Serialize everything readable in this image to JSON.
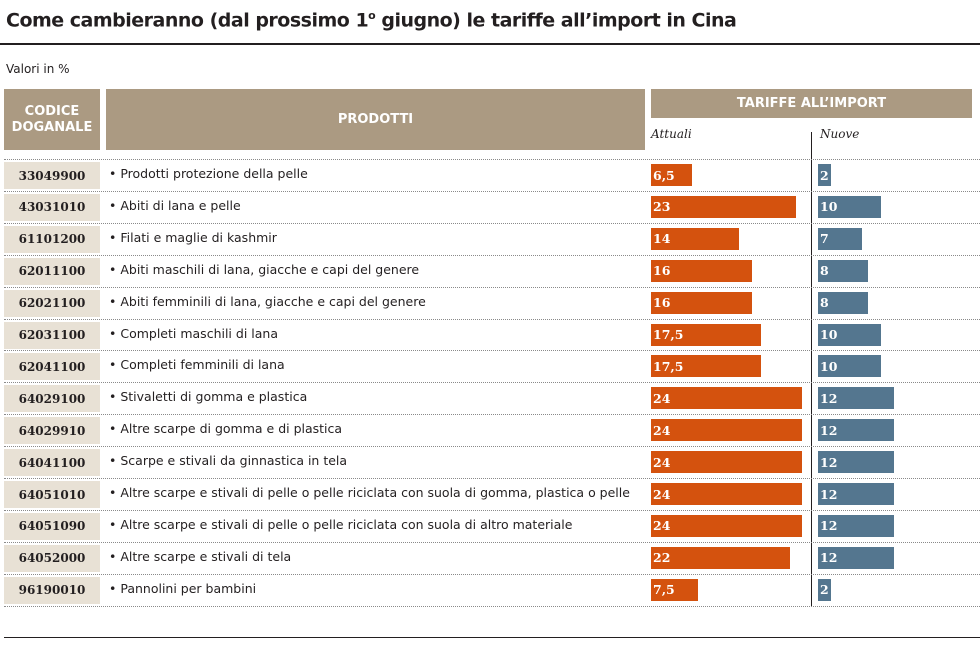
{
  "title_main": "Come cambieranno (dal prossimo 1",
  "title_sup": "o",
  "title_rest": " giugno) le tariffe all’import in Cina",
  "subtitle": "Valori in %",
  "headers": {
    "code_line1": "CODICE",
    "code_line2": "DOGANALE",
    "products": "PRODOTTI",
    "tariffs": "TARIFFE ALL’IMPORT",
    "current": "Attuali",
    "new": "Nuove"
  },
  "colors": {
    "current": "#d4520e",
    "new": "#54768f",
    "header": "#ab9a82",
    "code_bg": "#e8e1d5"
  },
  "chart_data": {
    "type": "bar",
    "title": "Come cambieranno (dal prossimo 1o giugno) le tariffe all’import in Cina",
    "subtitle": "Valori in %",
    "series": [
      {
        "name": "Attuali",
        "values": [
          6.5,
          23,
          14,
          16,
          16,
          17.5,
          17.5,
          24,
          24,
          24,
          24,
          24,
          22,
          7.5
        ]
      },
      {
        "name": "Nuove",
        "values": [
          2,
          10,
          7,
          8,
          8,
          10,
          10,
          12,
          12,
          12,
          12,
          12,
          12,
          2
        ]
      }
    ],
    "rows": [
      {
        "code": "33049900",
        "product": "• Prodotti protezione della pelle",
        "current_label": "6,5",
        "new_label": "2"
      },
      {
        "code": "43031010",
        "product": "• Abiti di lana e pelle",
        "current_label": "23",
        "new_label": "10"
      },
      {
        "code": "61101200",
        "product": "• Filati e maglie di kashmir",
        "current_label": "14",
        "new_label": "7"
      },
      {
        "code": "62011100",
        "product": "• Abiti maschili di lana, giacche e capi del genere",
        "current_label": "16",
        "new_label": "8"
      },
      {
        "code": "62021100",
        "product": "• Abiti femminili di lana, giacche e capi del genere",
        "current_label": "16",
        "new_label": "8"
      },
      {
        "code": "62031100",
        "product": "• Completi maschili di lana",
        "current_label": "17,5",
        "new_label": "10"
      },
      {
        "code": "62041100",
        "product": "• Completi femminili di lana",
        "current_label": "17,5",
        "new_label": "10"
      },
      {
        "code": "64029100",
        "product": "• Stivaletti di gomma e plastica",
        "current_label": "24",
        "new_label": "12"
      },
      {
        "code": "64029910",
        "product": "• Altre scarpe di gomma e di plastica",
        "current_label": "24",
        "new_label": "12"
      },
      {
        "code": "64041100",
        "product": "• Scarpe e stivali da ginnastica in tela",
        "current_label": "24",
        "new_label": "12"
      },
      {
        "code": "64051010",
        "product": "• Altre scarpe e stivali di pelle o pelle riciclata con suola di gomma, plastica o pelle",
        "current_label": "24",
        "new_label": "12"
      },
      {
        "code": "64051090",
        "product": "• Altre scarpe e stivali di pelle o pelle riciclata con suola di altro materiale",
        "current_label": "24",
        "new_label": "12"
      },
      {
        "code": "64052000",
        "product": "• Altre scarpe e stivali di tela",
        "current_label": "22",
        "new_label": "12"
      },
      {
        "code": "96190010",
        "product": "• Pannolini per bambini",
        "current_label": "7,5",
        "new_label": "2"
      }
    ]
  }
}
